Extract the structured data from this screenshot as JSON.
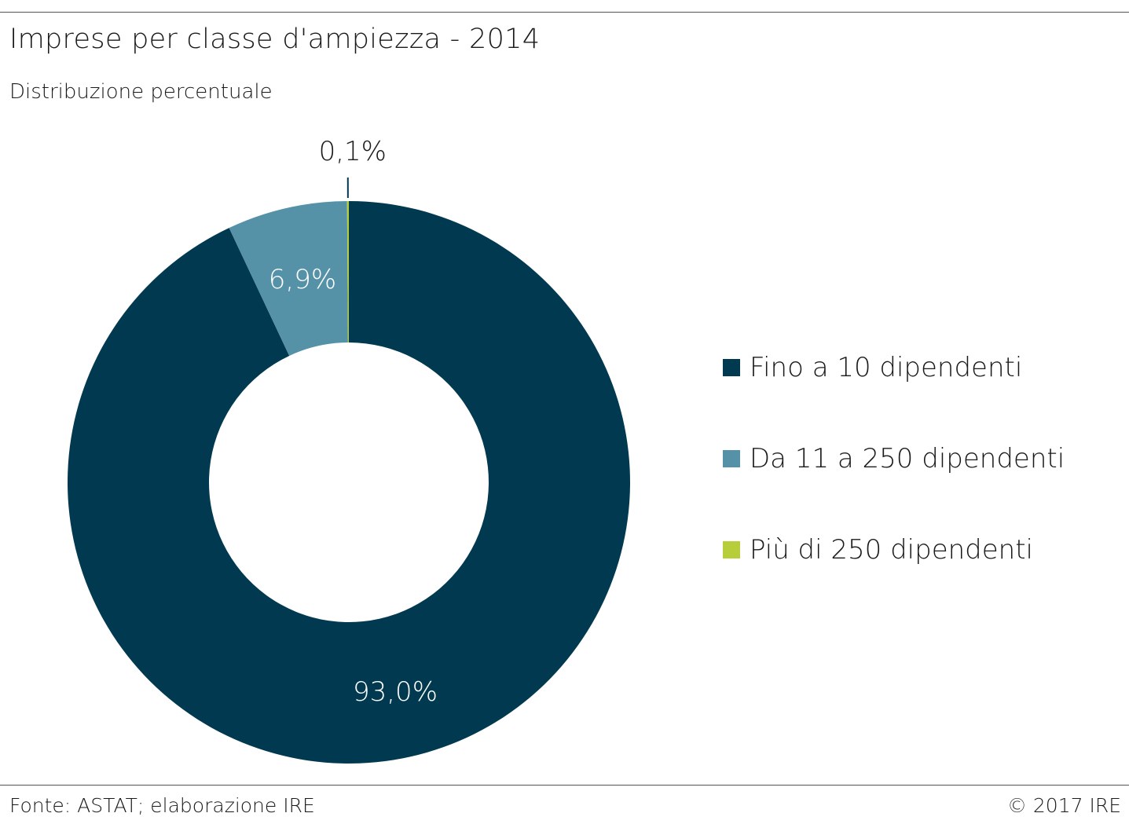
{
  "header": {
    "title": "Imprese per classe d'ampiezza - 2014",
    "subtitle": "Distribuzione percentuale"
  },
  "footer": {
    "source": "Fonte: ASTAT; elaborazione IRE",
    "copyright": "© 2017 IRE"
  },
  "chart_data": {
    "type": "pie",
    "variant": "donut",
    "title": "Imprese per classe d'ampiezza - 2014",
    "subtitle": "Distribuzione percentuale",
    "legend_position": "right",
    "slices": [
      {
        "label": "Fino a 10 dipendenti",
        "value": 93.0,
        "display": "93,0%",
        "color": "#013a50"
      },
      {
        "label": "Da 11 a 250 dipendenti",
        "value": 6.9,
        "display": "6,9%",
        "color": "#5592a8"
      },
      {
        "label": "Più di 250 dipendenti",
        "value": 0.1,
        "display": "0,1%",
        "color": "#b8cd3a"
      }
    ]
  }
}
